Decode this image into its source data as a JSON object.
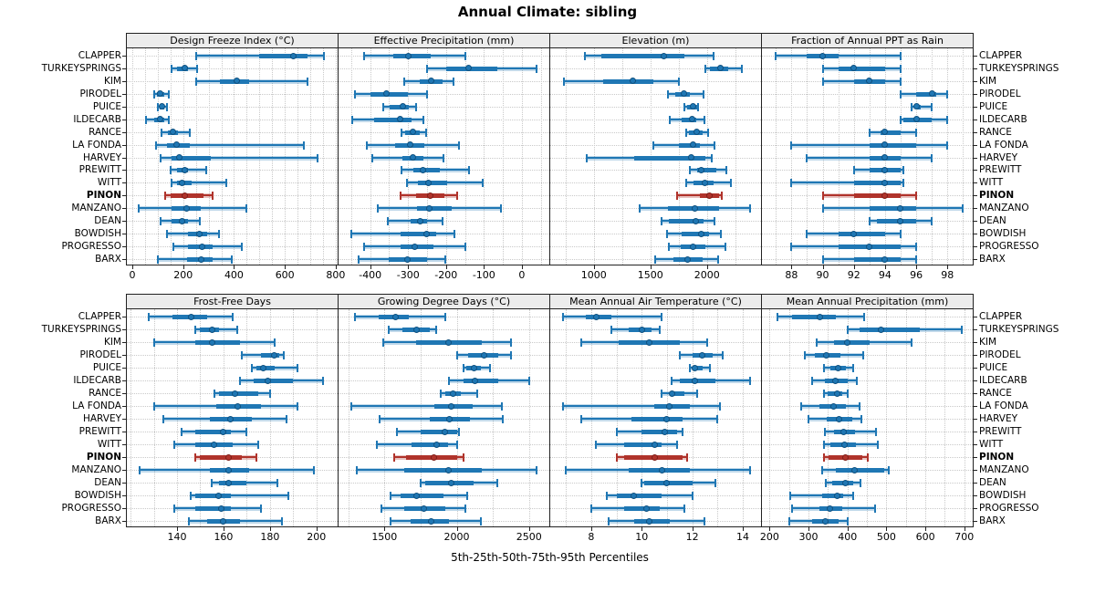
{
  "title": "Annual Climate: sibling",
  "footer": "5th-25th-50th-75th-95th Percentiles",
  "highlight_site": "PINON",
  "colors": {
    "series": "#1f77b4",
    "series_dot_border": "#10507e",
    "series_band": "rgba(31,119,180,0.28)",
    "highlight": "#b0332b",
    "highlight_dot_border": "#7e1d17",
    "highlight_band": "rgba(176,51,43,0.30)",
    "grid": "#c9c9c9",
    "strip_bg": "#ececec",
    "border": "#222222"
  },
  "chart_data": {
    "type": "dotplot-percentiles",
    "percentile_labels": [
      "5th",
      "25th",
      "50th",
      "75th",
      "95th"
    ],
    "legend_position": "none",
    "grid": true,
    "sites": [
      "CLAPPER",
      "TURKEYSPRINGS",
      "KIM",
      "PIRODEL",
      "PUICE",
      "ILDECARB",
      "RANCE",
      "LA FONDA",
      "HARVEY",
      "PREWITT",
      "WITT",
      "PINON",
      "MANZANO",
      "DEAN",
      "BOWDISH",
      "PROGRESSO",
      "BARX"
    ],
    "panels": [
      {
        "label": "Design Freeze Index (°C)",
        "row": 0,
        "col": 0,
        "domain": [
          -25,
          811
        ],
        "ticks": [
          0,
          200,
          400,
          600,
          800
        ],
        "grid_step": 50,
        "values": [
          [
            250,
            500,
            635,
            690,
            755
          ],
          [
            155,
            175,
            205,
            220,
            255
          ],
          [
            250,
            345,
            410,
            460,
            690
          ],
          [
            88,
            96,
            110,
            125,
            143
          ],
          [
            100,
            108,
            115,
            125,
            135
          ],
          [
            55,
            85,
            110,
            125,
            145
          ],
          [
            115,
            140,
            160,
            180,
            225
          ],
          [
            95,
            135,
            175,
            225,
            675
          ],
          [
            110,
            155,
            185,
            310,
            730
          ],
          [
            150,
            175,
            205,
            220,
            290
          ],
          [
            155,
            175,
            195,
            235,
            370
          ],
          [
            130,
            150,
            205,
            280,
            315
          ],
          [
            25,
            155,
            215,
            270,
            450
          ],
          [
            110,
            155,
            195,
            220,
            265
          ],
          [
            135,
            220,
            265,
            293,
            340
          ],
          [
            160,
            220,
            275,
            315,
            430
          ],
          [
            100,
            215,
            270,
            315,
            390
          ]
        ]
      },
      {
        "label": "Effective Precipitation (mm)",
        "row": 0,
        "col": 1,
        "domain": [
          -486,
          75
        ],
        "ticks": [
          -400,
          -300,
          -200,
          -100,
          0
        ],
        "grid_step": 50,
        "values": [
          [
            -415,
            -340,
            -300,
            -240,
            -150
          ],
          [
            -250,
            -200,
            -140,
            -65,
            40
          ],
          [
            -310,
            -270,
            -240,
            -210,
            -180
          ],
          [
            -440,
            -400,
            -358,
            -300,
            -250
          ],
          [
            -365,
            -348,
            -315,
            -297,
            -278
          ],
          [
            -448,
            -390,
            -320,
            -290,
            -260
          ],
          [
            -318,
            -308,
            -288,
            -270,
            -253
          ],
          [
            -410,
            -335,
            -295,
            -258,
            -165
          ],
          [
            -395,
            -315,
            -287,
            -260,
            -207
          ],
          [
            -318,
            -285,
            -260,
            -217,
            -140
          ],
          [
            -303,
            -273,
            -247,
            -197,
            -103
          ],
          [
            -320,
            -280,
            -241,
            -205,
            -170
          ],
          [
            -380,
            -277,
            -245,
            -185,
            -55
          ],
          [
            -353,
            -293,
            -267,
            -249,
            -209
          ],
          [
            -450,
            -320,
            -252,
            -225,
            -178
          ],
          [
            -415,
            -320,
            -283,
            -233,
            -150
          ],
          [
            -430,
            -352,
            -303,
            -250,
            -202
          ]
        ]
      },
      {
        "label": "Elevation (m)",
        "row": 0,
        "col": 2,
        "domain": [
          607,
          2486
        ],
        "ticks": [
          1000,
          1500,
          2000
        ],
        "grid_step": 250,
        "values": [
          [
            925,
            1070,
            1620,
            1800,
            2055
          ],
          [
            1985,
            2030,
            2120,
            2190,
            2310
          ],
          [
            735,
            1085,
            1345,
            1530,
            1750
          ],
          [
            1655,
            1720,
            1800,
            1850,
            1970
          ],
          [
            1800,
            1825,
            1875,
            1910,
            1925
          ],
          [
            1670,
            1775,
            1868,
            1908,
            1975
          ],
          [
            1815,
            1840,
            1908,
            1962,
            2010
          ],
          [
            1530,
            1750,
            1880,
            1940,
            2070
          ],
          [
            940,
            1360,
            1865,
            1990,
            2045
          ],
          [
            1850,
            1910,
            1950,
            2085,
            2175
          ],
          [
            1815,
            1880,
            1985,
            2055,
            2215
          ],
          [
            1740,
            1940,
            2020,
            2110,
            2130
          ],
          [
            1405,
            1655,
            1890,
            2110,
            2380
          ],
          [
            1600,
            1665,
            1900,
            1970,
            2070
          ],
          [
            1650,
            1775,
            1950,
            2015,
            2125
          ],
          [
            1660,
            1765,
            1875,
            1990,
            2160
          ],
          [
            1545,
            1705,
            1825,
            1960,
            2095
          ]
        ]
      },
      {
        "label": "Fraction of Annual PPT as Rain",
        "row": 0,
        "col": 3,
        "domain": [
          86.05,
          99.68
        ],
        "ticks": [
          88,
          90,
          92,
          94,
          96,
          98
        ],
        "grid_step": 1,
        "values": [
          [
            87,
            89,
            90,
            91,
            95
          ],
          [
            90,
            91,
            92,
            94,
            95
          ],
          [
            90,
            92,
            93,
            94,
            95
          ],
          [
            95,
            96,
            97,
            97.3,
            98
          ],
          [
            95.7,
            96,
            96,
            96.3,
            97
          ],
          [
            95,
            95.2,
            96,
            97,
            98
          ],
          [
            93,
            93.7,
            94,
            95,
            96
          ],
          [
            88,
            93,
            94,
            96,
            98
          ],
          [
            89,
            93,
            94,
            95,
            97
          ],
          [
            92,
            93,
            94,
            95,
            95.2
          ],
          [
            88,
            92,
            94,
            95,
            95.2
          ],
          [
            90,
            92,
            94,
            95,
            96
          ],
          [
            90,
            93,
            95,
            96,
            99
          ],
          [
            93,
            93.5,
            95,
            96,
            97
          ],
          [
            89,
            91,
            92,
            94,
            95
          ],
          [
            88,
            91,
            93,
            95,
            96
          ],
          [
            90,
            92,
            94,
            95,
            96
          ]
        ]
      },
      {
        "label": "Frost-Free Days",
        "row": 1,
        "col": 0,
        "domain": [
          118,
          209.5
        ],
        "ticks": [
          140,
          160,
          180,
          200
        ],
        "grid_step": 10,
        "values": [
          [
            128,
            138,
            146,
            153,
            164
          ],
          [
            148,
            150,
            155,
            158,
            166
          ],
          [
            130,
            148,
            155,
            167,
            182
          ],
          [
            168,
            176,
            182,
            184,
            186
          ],
          [
            172,
            174,
            177,
            182,
            192
          ],
          [
            167,
            173,
            179,
            190,
            203
          ],
          [
            156,
            158,
            165,
            175,
            180
          ],
          [
            130,
            157,
            166,
            176,
            192
          ],
          [
            134,
            154,
            163,
            172,
            187
          ],
          [
            142,
            148,
            160,
            163,
            170
          ],
          [
            139,
            148,
            156,
            164,
            175
          ],
          [
            148,
            150,
            162,
            168,
            174
          ],
          [
            124,
            154,
            162,
            171,
            199
          ],
          [
            155,
            158,
            162,
            170,
            183
          ],
          [
            146,
            148,
            158,
            163,
            188
          ],
          [
            139,
            148,
            159,
            163,
            176
          ],
          [
            145,
            153,
            160,
            167,
            185
          ]
        ]
      },
      {
        "label": "Growing Degree Days (°C)",
        "row": 1,
        "col": 1,
        "domain": [
          1176,
          2647
        ],
        "ticks": [
          1500,
          2000,
          2500
        ],
        "grid_step": 250,
        "values": [
          [
            1295,
            1460,
            1580,
            1670,
            1920
          ],
          [
            1530,
            1625,
            1720,
            1815,
            1860
          ],
          [
            1490,
            1720,
            1945,
            2175,
            2375
          ],
          [
            2005,
            2080,
            2190,
            2290,
            2375
          ],
          [
            2045,
            2065,
            2120,
            2170,
            2230
          ],
          [
            1945,
            2045,
            2125,
            2290,
            2500
          ],
          [
            1890,
            1920,
            1975,
            2030,
            2145
          ],
          [
            1270,
            1845,
            1960,
            2110,
            2310
          ],
          [
            1465,
            1815,
            1950,
            2090,
            2320
          ],
          [
            1585,
            1750,
            1920,
            2000,
            2015
          ],
          [
            1450,
            1685,
            1860,
            1940,
            2005
          ],
          [
            1570,
            1650,
            1840,
            2000,
            2050
          ],
          [
            1310,
            1635,
            1940,
            2175,
            2550
          ],
          [
            1750,
            1785,
            1965,
            2115,
            2280
          ],
          [
            1540,
            1610,
            1725,
            1910,
            2075
          ],
          [
            1480,
            1635,
            1775,
            1920,
            2060
          ],
          [
            1540,
            1680,
            1825,
            1945,
            2165
          ]
        ]
      },
      {
        "label": "Mean Annual Air Temperature (°C)",
        "row": 1,
        "col": 2,
        "domain": [
          6.34,
          14.76
        ],
        "ticks": [
          8,
          10,
          12,
          14
        ],
        "grid_step": 1,
        "values": [
          [
            6.9,
            7.8,
            8.2,
            8.8,
            10.8
          ],
          [
            8.8,
            9.5,
            10,
            10.4,
            10.7
          ],
          [
            7.6,
            9.1,
            10.3,
            11.5,
            12.6
          ],
          [
            11.5,
            12,
            12.4,
            12.8,
            13.2
          ],
          [
            11.9,
            12,
            12.1,
            12.4,
            12.7
          ],
          [
            11.2,
            11.5,
            12.1,
            12.9,
            14.3
          ],
          [
            10.8,
            11.1,
            11.2,
            11.7,
            12.2
          ],
          [
            6.9,
            10.5,
            11.1,
            11.9,
            13.1
          ],
          [
            7.6,
            9.6,
            11,
            11.6,
            13
          ],
          [
            9,
            10,
            10.9,
            11.4,
            11.6
          ],
          [
            8.2,
            9.3,
            10.5,
            10.8,
            11.4
          ],
          [
            9,
            9.3,
            10.5,
            11.6,
            11.8
          ],
          [
            7,
            9.5,
            10.8,
            11.9,
            14.3
          ],
          [
            10,
            10.1,
            11,
            12,
            12.9
          ],
          [
            8.6,
            9,
            9.7,
            10.8,
            12
          ],
          [
            8,
            9.3,
            10.2,
            10.7,
            11.7
          ],
          [
            8.7,
            9.7,
            10.3,
            11.1,
            12.5
          ]
        ]
      },
      {
        "label": "Mean Annual Precipitation (mm)",
        "row": 1,
        "col": 3,
        "domain": [
          178,
          724
        ],
        "ticks": [
          200,
          300,
          400,
          500,
          600,
          700
        ],
        "grid_step": 50,
        "values": [
          [
            220,
            257,
            330,
            370,
            443
          ],
          [
            400,
            430,
            487,
            585,
            694
          ],
          [
            320,
            366,
            400,
            458,
            565
          ],
          [
            290,
            317,
            345,
            382,
            440
          ],
          [
            340,
            355,
            375,
            395,
            415
          ],
          [
            310,
            343,
            370,
            400,
            425
          ],
          [
            340,
            350,
            373,
            387,
            400
          ],
          [
            280,
            327,
            365,
            395,
            430
          ],
          [
            300,
            347,
            378,
            412,
            435
          ],
          [
            343,
            366,
            390,
            420,
            473
          ],
          [
            340,
            356,
            392,
            422,
            477
          ],
          [
            340,
            352,
            395,
            438,
            452
          ],
          [
            335,
            370,
            418,
            495,
            505
          ],
          [
            344,
            360,
            395,
            415,
            433
          ],
          [
            252,
            335,
            373,
            390,
            415
          ],
          [
            257,
            327,
            356,
            386,
            470
          ],
          [
            250,
            310,
            344,
            378,
            400
          ]
        ]
      }
    ]
  }
}
